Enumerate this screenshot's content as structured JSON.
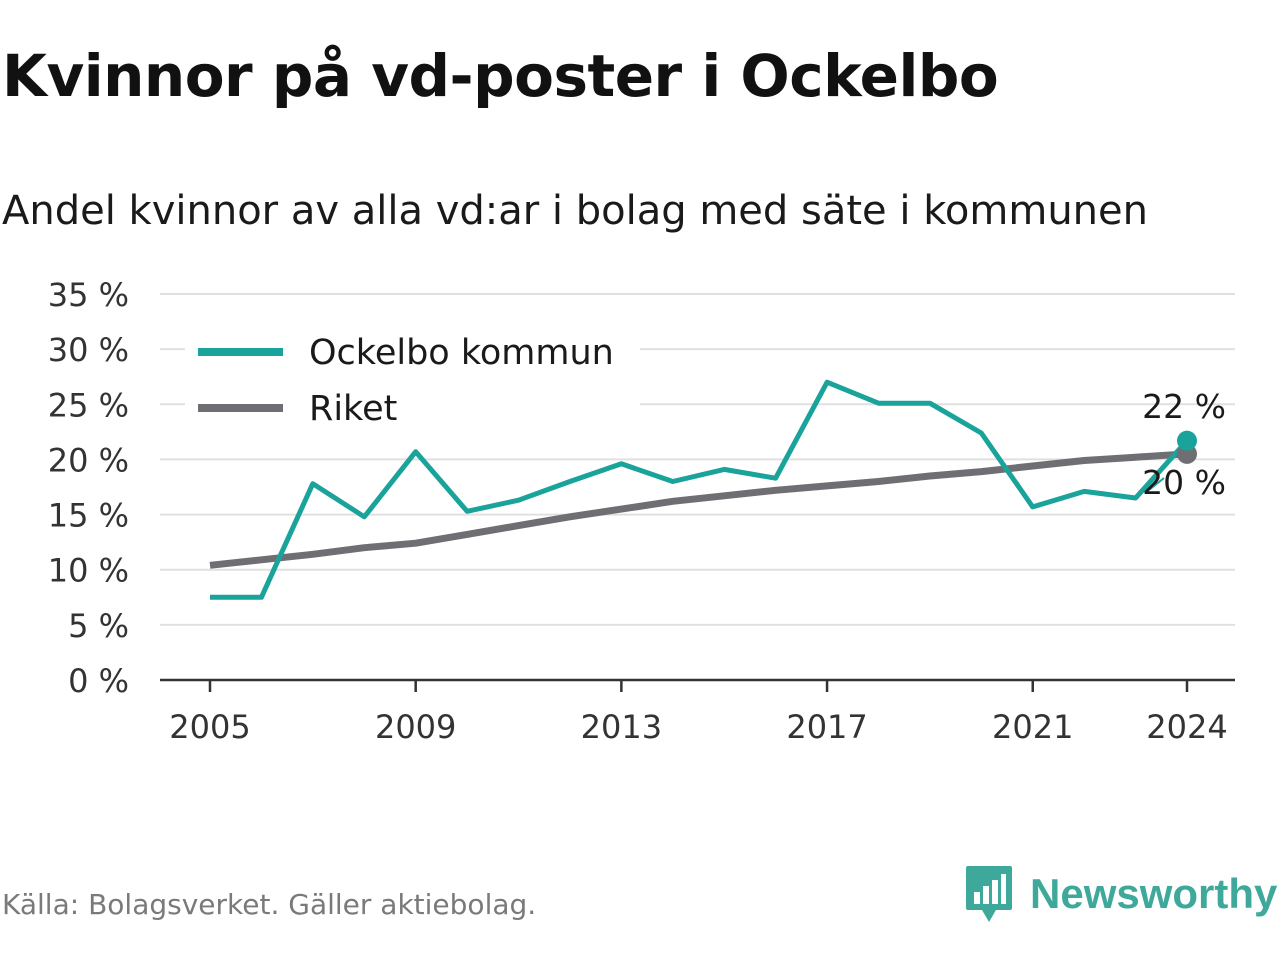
{
  "title": "Kvinnor på vd-poster i Ockelbo",
  "subtitle": "Andel kvinnor av alla vd:ar i bolag med säte i kommunen",
  "source": "Källa: Bolagsverket. Gäller aktiebolag.",
  "brand": {
    "name": "Newsworthy",
    "icon": "newsworthy-logo-icon"
  },
  "colors": {
    "ockelbo": "#1aa39a",
    "riket": "#6f6e73",
    "grid": "#e0e0e0",
    "axis": "#333333"
  },
  "chart_data": {
    "type": "line",
    "x": [
      2005,
      2006,
      2007,
      2008,
      2009,
      2010,
      2011,
      2012,
      2013,
      2014,
      2015,
      2016,
      2017,
      2018,
      2019,
      2020,
      2021,
      2022,
      2023,
      2024
    ],
    "xticks": [
      2005,
      2009,
      2013,
      2017,
      2021,
      2024
    ],
    "yticks": [
      0,
      5,
      10,
      15,
      20,
      25,
      30,
      35
    ],
    "ytick_labels": [
      "0 %",
      "5 %",
      "10 %",
      "15 %",
      "20 %",
      "25 %",
      "30 %",
      "35 %"
    ],
    "ylim": [
      0,
      35
    ],
    "grid": true,
    "legend_position": "top-left",
    "series": [
      {
        "name": "Ockelbo kommun",
        "color": "#1aa39a",
        "values": [
          7.5,
          7.5,
          17.8,
          14.8,
          20.7,
          15.3,
          16.3,
          18.0,
          19.6,
          18.0,
          19.1,
          18.3,
          27.0,
          25.1,
          25.1,
          22.4,
          15.7,
          17.1,
          16.5,
          21.7
        ],
        "end_label": "22 %"
      },
      {
        "name": "Riket",
        "color": "#6f6e73",
        "values": [
          10.4,
          10.9,
          11.4,
          12.0,
          12.4,
          13.2,
          14.0,
          14.8,
          15.5,
          16.2,
          16.7,
          17.2,
          17.6,
          18.0,
          18.5,
          18.9,
          19.4,
          19.9,
          20.2,
          20.5
        ],
        "end_label": "20 %"
      }
    ]
  }
}
